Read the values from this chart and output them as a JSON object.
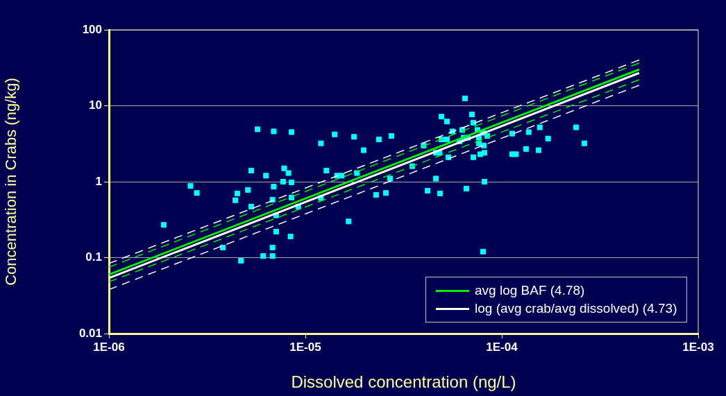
{
  "chart_data": {
    "type": "scatter",
    "xlabel": "Dissolved concentration (ng/L)",
    "ylabel": "Concentration in Crabs (ng/kg)",
    "log": "xy",
    "grid": "y",
    "legend": "bottom right",
    "xlim": [
      1e-06,
      0.001
    ],
    "xticks": [
      {
        "value": 1e-06,
        "label": "1E-06"
      },
      {
        "value": 1e-05,
        "label": "1E-05"
      },
      {
        "value": 0.0001,
        "label": "1E-04"
      },
      {
        "value": 0.001,
        "label": "1E-03"
      }
    ],
    "ylim": [
      0.01,
      100
    ],
    "yticks": [
      0.01,
      0.1,
      1,
      10,
      100
    ],
    "series": [
      {
        "color": "#00ffff",
        "marker": "square",
        "x": [
          1.9e-06,
          2.6e-06,
          2.8e-06,
          3.8e-06,
          4.4e-06,
          4.5e-06,
          4.7e-06,
          5.1e-06,
          5.3e-06,
          5.3e-06,
          5.7e-06,
          6.1e-06,
          6.3e-06,
          6.8e-06,
          6.8e-06,
          6.8e-06,
          6.9e-06,
          6.9e-06,
          7.1e-06,
          7.1e-06,
          7.7e-06,
          7.8e-06,
          8.2e-06,
          8.4e-06,
          8.5e-06,
          8.5e-06,
          8.5e-06,
          9.2e-06,
          1.2e-05,
          1.2e-05,
          1.28e-05,
          1.41e-05,
          1.45e-05,
          1.53e-05,
          1.66e-05,
          1.77e-05,
          1.83e-05,
          1.98e-05,
          2.29e-05,
          2.37e-05,
          2.57e-05,
          2.7e-05,
          2.74e-05,
          3.5e-05,
          4e-05,
          4.19e-05,
          4.62e-05,
          4.81e-05,
          4.62e-05,
          4.85e-05,
          4.93e-05,
          4.93e-05,
          5.26e-05,
          5.26e-05,
          5.35e-05,
          5.61e-05,
          6.09e-05,
          6.29e-05,
          6.39e-05,
          6.5e-05,
          6.6e-05,
          6.71e-05,
          7.05e-05,
          7.16e-05,
          7.16e-05,
          7.52e-05,
          7.64e-05,
          7.64e-05,
          7.77e-05,
          8.03e-05,
          8.09e-05,
          8.16e-05,
          8.16e-05,
          8.03e-05,
          8.43e-05,
          0.000113,
          0.000113,
          0.000118,
          0.000133,
          0.000137,
          0.000154,
          0.000156,
          0.000172,
          0.000239,
          0.000263
        ],
        "values": [
          0.27,
          0.88,
          0.71,
          0.136,
          0.57,
          0.7,
          0.091,
          0.78,
          1.4,
          0.47,
          4.9,
          0.105,
          1.2,
          0.136,
          0.105,
          0.58,
          0.86,
          4.6,
          0.36,
          0.22,
          1.0,
          1.5,
          1.3,
          0.19,
          4.5,
          0.98,
          0.62,
          0.47,
          3.2,
          0.61,
          1.4,
          4.2,
          1.2,
          1.2,
          0.3,
          3.9,
          1.3,
          2.6,
          0.67,
          3.6,
          0.71,
          1.1,
          4.0,
          1.6,
          3.0,
          0.76,
          2.4,
          2.4,
          1.1,
          0.7,
          7.2,
          3.6,
          6.2,
          3.6,
          2.1,
          4.6,
          3.4,
          4.8,
          3.8,
          12.5,
          0.81,
          3.8,
          7.7,
          6.0,
          2.1,
          4.8,
          3.8,
          3.2,
          2.3,
          4.4,
          3.0,
          2.4,
          1.0,
          0.12,
          4.0,
          4.3,
          2.3,
          2.3,
          2.7,
          4.5,
          2.6,
          5.2,
          3.7,
          5.2,
          3.2
        ]
      },
      {
        "type": "line",
        "line_style": "dashed",
        "color": "#ffffff",
        "x": [
          1e-06,
          0.0005
        ],
        "values": [
          0.084,
          40
        ]
      },
      {
        "type": "line",
        "line_style": "dashed",
        "color": "#00ee00",
        "x": [
          1e-06,
          0.0005
        ],
        "values": [
          0.075,
          36.5
        ]
      },
      {
        "type": "line",
        "name": "avg log BAF (4.78)",
        "color": "#00ee00",
        "x": [
          1e-06,
          0.0005
        ],
        "values": [
          0.06,
          30
        ]
      },
      {
        "type": "line",
        "name": "log (avg crab/avg dissolved) (4.73)",
        "color": "#ffffee",
        "x": [
          1e-06,
          0.0005
        ],
        "values": [
          0.054,
          27
        ]
      },
      {
        "type": "line",
        "line_style": "dashed",
        "color": "#00ee00",
        "x": [
          1e-06,
          0.0005
        ],
        "values": [
          0.048,
          22
        ]
      },
      {
        "type": "line",
        "line_style": "dashed",
        "color": "#ffffff",
        "x": [
          1e-06,
          0.0005
        ],
        "values": [
          0.038,
          18.6
        ]
      }
    ]
  }
}
